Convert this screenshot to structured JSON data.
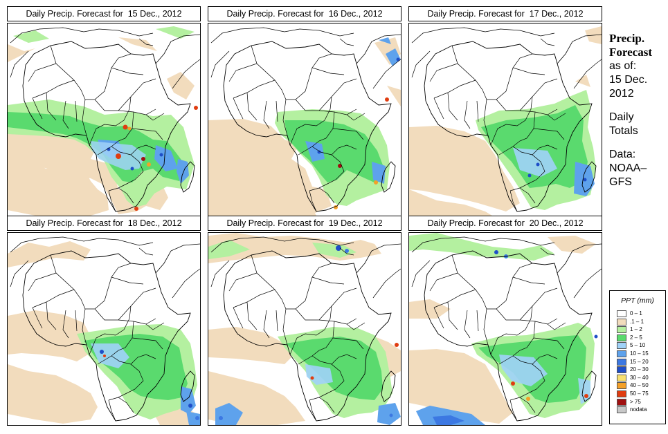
{
  "panels": [
    {
      "title": "Daily Precip. Forecast for  15 Dec., 2012",
      "date": "15 Dec., 2012"
    },
    {
      "title": "Daily Precip. Forecast for  16 Dec., 2012",
      "date": "16 Dec., 2012"
    },
    {
      "title": "Daily Precip. Forecast for  17 Dec., 2012",
      "date": "17 Dec., 2012"
    },
    {
      "title": "Daily Precip. Forecast for  18 Dec., 2012",
      "date": "18 Dec., 2012"
    },
    {
      "title": "Daily Precip. Forecast for  19 Dec., 2012",
      "date": "19 Dec., 2012"
    },
    {
      "title": "Daily Precip. Forecast for  20 Dec., 2012",
      "date": "20 Dec., 2012"
    }
  ],
  "sidebar": {
    "heading_line1": "Precip.",
    "heading_line2": "Forecast",
    "asof_label": "as of:",
    "asof_date_line1": "15 Dec.",
    "asof_date_line2": "2012",
    "totals_line1": "Daily",
    "totals_line2": "Totals",
    "source_line1": "Data:",
    "source_line2": "NOAA–",
    "source_line3": "GFS"
  },
  "legend": {
    "title": "PPT (mm)",
    "items": [
      {
        "label": "0 – 1",
        "color": "#ffffff"
      },
      {
        "label": ".1 – 1",
        "color": "#f2dcbd"
      },
      {
        "label": "1 – 2",
        "color": "#b4f0a0"
      },
      {
        "label": "2 – 5",
        "color": "#5ada6e"
      },
      {
        "label": "5 – 10",
        "color": "#a0d2f8"
      },
      {
        "label": "10 – 15",
        "color": "#5ea2ec"
      },
      {
        "label": "15 – 20",
        "color": "#3c78e2"
      },
      {
        "label": "20 – 30",
        "color": "#1e4ec8"
      },
      {
        "label": "30 – 40",
        "color": "#f8e070"
      },
      {
        "label": "40 – 50",
        "color": "#f4a028"
      },
      {
        "label": "50 – 75",
        "color": "#e03c10"
      },
      {
        "label": "> 75",
        "color": "#a01010"
      },
      {
        "label": "nodata",
        "color": "#c8c8c8"
      }
    ]
  }
}
